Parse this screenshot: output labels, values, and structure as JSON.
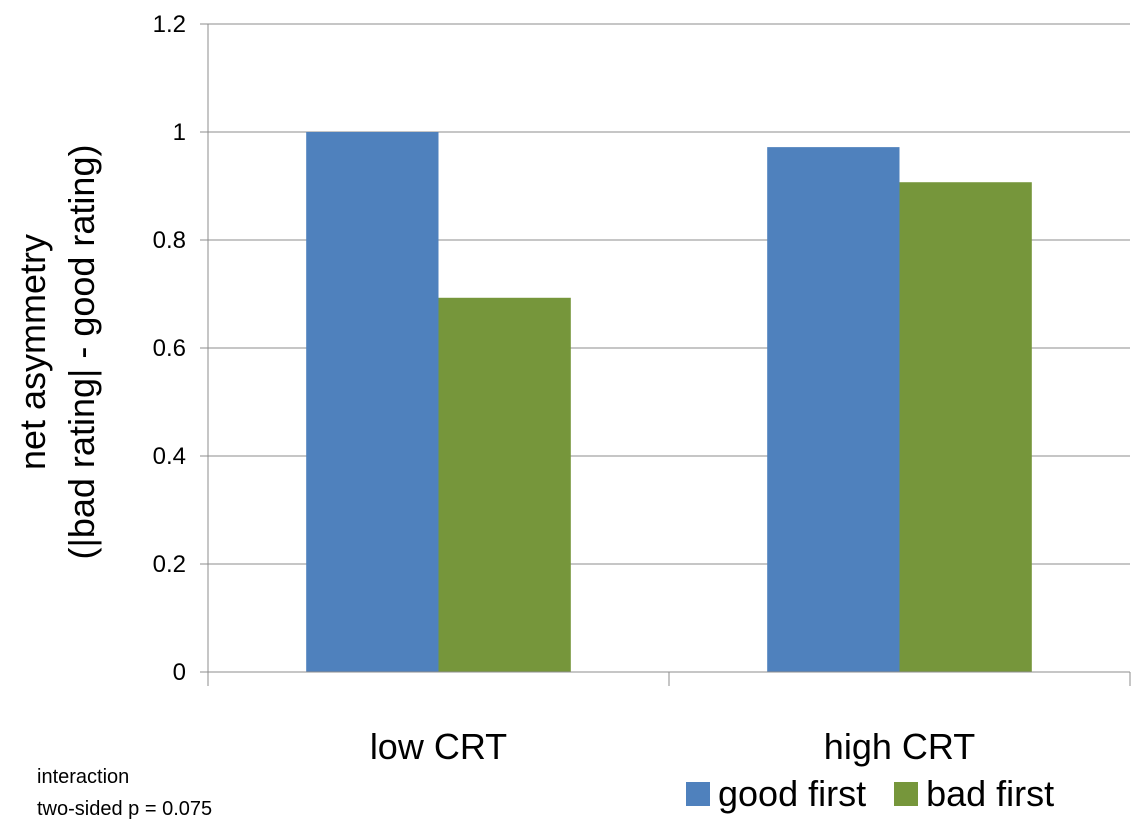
{
  "chart_data": {
    "type": "bar",
    "categories": [
      "low CRT",
      "high CRT"
    ],
    "series": [
      {
        "name": "good first",
        "values": [
          1.0,
          0.972
        ],
        "color": "#4f81bd"
      },
      {
        "name": "bad first",
        "values": [
          0.693,
          0.907
        ],
        "color": "#76963b"
      }
    ],
    "ylabel_line1": "net asymmetry",
    "ylabel_line2": "(|bad rating| - good rating)",
    "ylim": [
      0,
      1.2
    ],
    "yticks": [
      "0",
      "0.2",
      "0.4",
      "0.6",
      "0.8",
      "1",
      "1.2"
    ],
    "grid": true,
    "legend_position": "bottom-right"
  },
  "annotation": {
    "line1": "interaction",
    "line2": "two-sided p = 0.075"
  }
}
